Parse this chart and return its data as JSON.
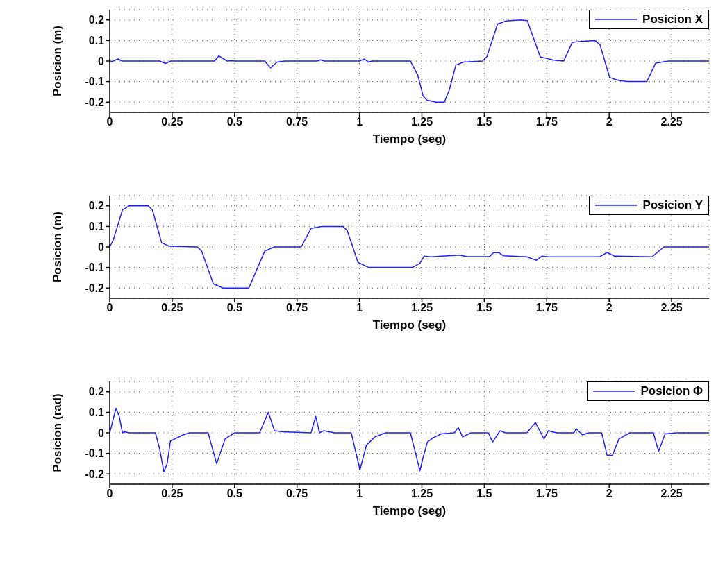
{
  "chart_data": [
    {
      "type": "line",
      "xlabel": "Tiempo (seg)",
      "ylabel": "Posicion (m)",
      "xlim": [
        0,
        2.4
      ],
      "xticks": [
        0,
        0.25,
        0.5,
        0.75,
        1,
        1.25,
        1.5,
        1.75,
        2,
        2.25
      ],
      "ylim": [
        -0.25,
        0.25
      ],
      "yticks": [
        -0.2,
        -0.1,
        0,
        0.1,
        0.2
      ],
      "grid": true,
      "legend": "top right",
      "series": [
        {
          "name": "Posicion X",
          "color": "#1f1fff",
          "x": [
            0,
            0.01,
            0.033,
            0.05,
            0.2,
            0.223,
            0.245,
            0.42,
            0.437,
            0.47,
            0.49,
            0.5,
            0.62,
            0.644,
            0.67,
            0.7,
            0.83,
            0.845,
            0.86,
            1.0,
            1.02,
            1.035,
            1.05,
            1.204,
            1.234,
            1.255,
            1.27,
            1.306,
            1.34,
            1.36,
            1.386,
            1.416,
            1.493,
            1.51,
            1.553,
            1.587,
            1.647,
            1.672,
            1.724,
            1.784,
            1.818,
            1.852,
            1.878,
            1.942,
            1.963,
            2.002,
            2.04,
            2.074,
            2.151,
            2.186,
            2.237,
            2.365,
            2.4
          ],
          "values": [
            0,
            -0.002,
            0.01,
            0,
            0,
            -0.012,
            0,
            0,
            0.025,
            0,
            0.002,
            0,
            0,
            -0.033,
            -0.005,
            0,
            0,
            0.006,
            0,
            0,
            0.01,
            -0.005,
            0,
            0,
            -0.07,
            -0.17,
            -0.19,
            -0.2,
            -0.2,
            -0.14,
            -0.02,
            -0.005,
            0,
            0.02,
            0.18,
            0.195,
            0.2,
            0.197,
            0.02,
            0.003,
            0,
            0.09,
            0.095,
            0.1,
            0.08,
            -0.08,
            -0.095,
            -0.1,
            -0.1,
            -0.01,
            0,
            0,
            0
          ]
        }
      ]
    },
    {
      "type": "line",
      "xlabel": "Tiempo (seg)",
      "ylabel": "Posicion (m)",
      "xlim": [
        0,
        2.4
      ],
      "xticks": [
        0,
        0.25,
        0.5,
        0.75,
        1,
        1.25,
        1.5,
        1.75,
        2,
        2.25
      ],
      "ylim": [
        -0.25,
        0.25
      ],
      "yticks": [
        -0.2,
        -0.1,
        0,
        0.1,
        0.2
      ],
      "grid": true,
      "legend": "top right",
      "series": [
        {
          "name": "Posicion Y",
          "color": "#1f1fff",
          "x": [
            0,
            0.013,
            0.051,
            0.064,
            0.077,
            0.154,
            0.171,
            0.208,
            0.24,
            0.351,
            0.368,
            0.415,
            0.454,
            0.557,
            0.621,
            0.66,
            0.767,
            0.806,
            0.849,
            0.934,
            0.951,
            0.994,
            1.037,
            1.16,
            1.212,
            1.242,
            1.259,
            1.285,
            1.401,
            1.431,
            1.521,
            1.538,
            1.559,
            1.576,
            1.67,
            1.709,
            1.73,
            1.756,
            1.962,
            1.992,
            2.022,
            2.172,
            2.219,
            2.4
          ],
          "values": [
            0,
            0.03,
            0.18,
            0.19,
            0.2,
            0.2,
            0.18,
            0.02,
            0.003,
            0,
            -0.02,
            -0.18,
            -0.2,
            -0.2,
            -0.02,
            0,
            0,
            0.09,
            0.1,
            0.1,
            0.08,
            -0.075,
            -0.1,
            -0.1,
            -0.1,
            -0.08,
            -0.045,
            -0.048,
            -0.04,
            -0.047,
            -0.047,
            -0.027,
            -0.028,
            -0.043,
            -0.048,
            -0.065,
            -0.045,
            -0.048,
            -0.048,
            -0.027,
            -0.045,
            -0.048,
            0,
            0
          ]
        }
      ]
    },
    {
      "type": "line",
      "xlabel": "Tiempo (seg)",
      "ylabel": "Posicion (rad)",
      "xlim": [
        0,
        2.4
      ],
      "xticks": [
        0,
        0.25,
        0.5,
        0.75,
        1,
        1.25,
        1.5,
        1.75,
        2,
        2.25
      ],
      "ylim": [
        -0.25,
        0.25
      ],
      "yticks": [
        -0.2,
        -0.1,
        0,
        0.1,
        0.2
      ],
      "grid": true,
      "legend": "top right",
      "series": [
        {
          "name": "Posicion Φ",
          "color": "#1f1fff",
          "x": [
            0,
            0.025,
            0.038,
            0.051,
            0.06,
            0.077,
            0.183,
            0.2,
            0.217,
            0.23,
            0.243,
            0.294,
            0.32,
            0.394,
            0.428,
            0.462,
            0.488,
            0.5,
            0.6,
            0.635,
            0.66,
            0.694,
            0.806,
            0.825,
            0.84,
            0.857,
            0.9,
            0.967,
            1.002,
            1.028,
            1.045,
            1.062,
            1.105,
            1.204,
            1.225,
            1.242,
            1.255,
            1.272,
            1.294,
            1.328,
            1.379,
            1.396,
            1.413,
            1.447,
            1.516,
            1.533,
            1.563,
            1.585,
            1.67,
            1.705,
            1.739,
            1.756,
            1.79,
            1.859,
            1.868,
            1.893,
            1.918,
            1.97,
            1.992,
            2.013,
            2.039,
            2.082,
            2.177,
            2.198,
            2.224,
            2.271,
            2.4
          ],
          "values": [
            0,
            0.12,
            0.08,
            0,
            0.005,
            0,
            0,
            -0.08,
            -0.19,
            -0.15,
            -0.04,
            -0.01,
            0,
            0,
            -0.15,
            -0.03,
            -0.01,
            0,
            0,
            0.1,
            0.01,
            0.005,
            0,
            0.08,
            0,
            0.01,
            0,
            0,
            -0.18,
            -0.06,
            -0.04,
            -0.02,
            0,
            0,
            -0.1,
            -0.185,
            -0.12,
            -0.045,
            -0.025,
            -0.005,
            0,
            0.025,
            -0.02,
            0,
            0,
            -0.045,
            0.01,
            0,
            0,
            0.05,
            -0.03,
            0.01,
            0,
            0,
            0.02,
            -0.01,
            0,
            0,
            -0.11,
            -0.11,
            -0.03,
            0,
            0,
            -0.09,
            -0.005,
            0,
            0
          ]
        }
      ]
    }
  ]
}
